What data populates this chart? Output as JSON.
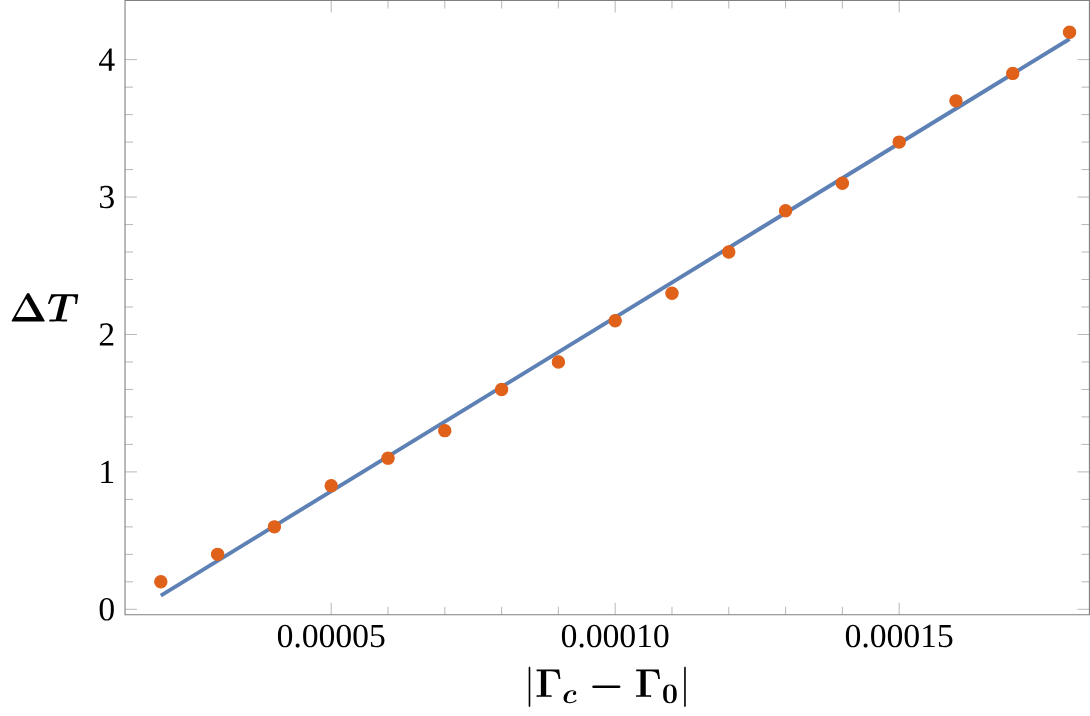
{
  "chart_data": {
    "type": "scatter",
    "xlabel": "|\\boldsymbol{\\Gamma_c-\\Gamma_0}|",
    "ylabel": "\\boldsymbol{\\Delta T}",
    "series": [
      {
        "color": "#e0611a",
        "marker": "circle",
        "x": [
          2e-05,
          3e-05,
          4e-05,
          5e-05,
          6e-05,
          7e-05,
          8e-05,
          9e-05,
          0.0001,
          0.00011,
          0.00012,
          0.00013,
          0.00014,
          0.00015,
          0.00016,
          0.00017,
          0.00018
        ],
        "values": [
          0.2,
          0.4,
          0.6,
          0.9,
          1.1,
          1.3,
          1.6,
          1.8,
          2.1,
          2.3,
          2.6,
          2.9,
          3.1,
          3.4,
          3.7,
          3.9,
          4.2
        ]
      },
      {
        "type": "line",
        "color": "#5e81b5",
        "x": [
          2e-05,
          0.00018
        ],
        "values": [
          0.1,
          4.15
        ]
      }
    ],
    "xlim": [
      1.37e-05,
      0.0001835
    ],
    "ylim": [
      -0.04,
      4.43
    ],
    "xticks": [
      {
        "value": 5e-05,
        "label": "0.00005"
      },
      {
        "value": 0.0001,
        "label": "0.00010"
      },
      {
        "value": 0.00015,
        "label": "0.00015"
      }
    ],
    "yticks": [
      0,
      1,
      2,
      3,
      4
    ]
  }
}
